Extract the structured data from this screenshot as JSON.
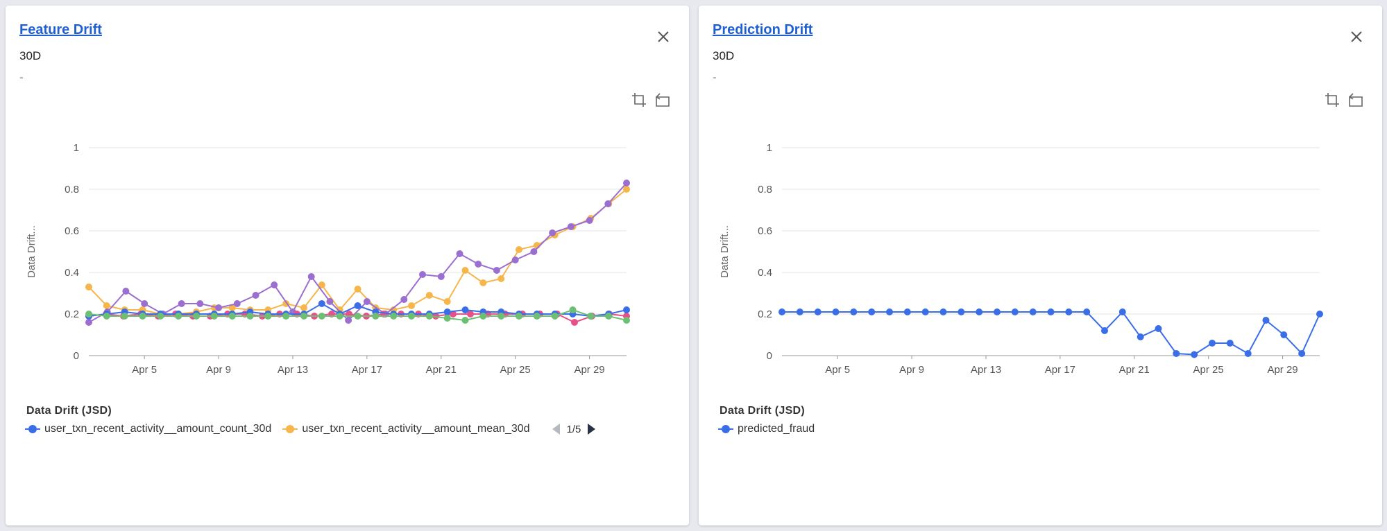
{
  "panels": [
    {
      "title": "Feature Drift",
      "period": "30D",
      "subtitle": "-",
      "legend_title": "Data Drift (JSD)",
      "legend_items": [
        {
          "name": "user_txn_recent_activity__amount_count_30d",
          "color": "#3a6ee8"
        },
        {
          "name": "user_txn_recent_activity__amount_mean_30d",
          "color": "#f7b64c"
        }
      ],
      "pager": "1/5"
    },
    {
      "title": "Prediction Drift",
      "period": "30D",
      "subtitle": "-",
      "legend_title": "Data Drift (JSD)",
      "legend_items": [
        {
          "name": "predicted_fraud",
          "color": "#3a6ee8"
        }
      ]
    }
  ],
  "chart_data": [
    {
      "type": "line",
      "ylabel": "Data Drift...",
      "ylim": [
        0,
        1
      ],
      "yticks": [
        "0",
        "0.2",
        "0.4",
        "0.6",
        "0.8",
        "1"
      ],
      "xlim": [
        "Apr 2",
        "Apr 31"
      ],
      "xticks": [
        "Apr 5",
        "Apr 9",
        "Apr 13",
        "Apr 17",
        "Apr 21",
        "Apr 25",
        "Apr 29"
      ],
      "grid": true,
      "legend_position": "bottom",
      "series": [
        {
          "name": "user_txn_recent_activity__amount_mean_30d",
          "color": "#f7b64c",
          "values": [
            0.33,
            0.24,
            0.22,
            0.22,
            0.2,
            0.2,
            0.21,
            0.23,
            0.23,
            0.22,
            0.22,
            0.25,
            0.23,
            0.34,
            0.22,
            0.32,
            0.23,
            0.22,
            0.24,
            0.29,
            0.26,
            0.41,
            0.35,
            0.37,
            0.51,
            0.53,
            0.58,
            0.62,
            0.66,
            0.73,
            0.8
          ]
        },
        {
          "color": "#9b6fcf",
          "values": [
            0.16,
            0.21,
            0.31,
            0.25,
            0.2,
            0.25,
            0.25,
            0.23,
            0.25,
            0.29,
            0.34,
            0.21,
            0.38,
            0.26,
            0.17,
            0.26,
            0.2,
            0.27,
            0.39,
            0.38,
            0.49,
            0.44,
            0.41,
            0.46,
            0.5,
            0.59,
            0.62,
            0.65,
            0.73,
            0.83
          ]
        },
        {
          "color": "#e8508a",
          "values": [
            0.19,
            0.2,
            0.19,
            0.2,
            0.19,
            0.2,
            0.19,
            0.19,
            0.2,
            0.2,
            0.19,
            0.2,
            0.2,
            0.19,
            0.2,
            0.2,
            0.19,
            0.2,
            0.2,
            0.2,
            0.19,
            0.2,
            0.2,
            0.2,
            0.2,
            0.2,
            0.2,
            0.2,
            0.16,
            0.19,
            0.2,
            0.19
          ]
        },
        {
          "name": "user_txn_recent_activity__amount_count_30d",
          "color": "#3a6ee8",
          "values": [
            0.19,
            0.2,
            0.21,
            0.2,
            0.2,
            0.2,
            0.2,
            0.2,
            0.2,
            0.21,
            0.2,
            0.2,
            0.2,
            0.25,
            0.2,
            0.24,
            0.21,
            0.2,
            0.2,
            0.2,
            0.21,
            0.22,
            0.21,
            0.21,
            0.2,
            0.2,
            0.2,
            0.2,
            0.19,
            0.2,
            0.22
          ]
        },
        {
          "color": "#6cbf73",
          "values": [
            0.2,
            0.19,
            0.19,
            0.19,
            0.19,
            0.19,
            0.19,
            0.19,
            0.19,
            0.19,
            0.19,
            0.19,
            0.19,
            0.19,
            0.19,
            0.19,
            0.19,
            0.19,
            0.19,
            0.19,
            0.18,
            0.17,
            0.19,
            0.19,
            0.19,
            0.19,
            0.19,
            0.22,
            0.19,
            0.19,
            0.17
          ]
        }
      ]
    },
    {
      "type": "line",
      "ylabel": "Data Drift...",
      "ylim": [
        0,
        1
      ],
      "yticks": [
        "0",
        "0.2",
        "0.4",
        "0.6",
        "0.8",
        "1"
      ],
      "xlim": [
        "Apr 2",
        "Apr 31"
      ],
      "xticks": [
        "Apr 5",
        "Apr 9",
        "Apr 13",
        "Apr 17",
        "Apr 21",
        "Apr 25",
        "Apr 29"
      ],
      "grid": true,
      "legend_position": "bottom",
      "series": [
        {
          "name": "predicted_fraud",
          "color": "#3a6ee8",
          "values": [
            0.21,
            0.21,
            0.21,
            0.21,
            0.21,
            0.21,
            0.21,
            0.21,
            0.21,
            0.21,
            0.21,
            0.21,
            0.21,
            0.21,
            0.21,
            0.21,
            0.21,
            0.21,
            0.12,
            0.21,
            0.09,
            0.13,
            0.01,
            0.005,
            0.06,
            0.06,
            0.01,
            0.17,
            0.1,
            0.01,
            0.2
          ]
        }
      ]
    }
  ]
}
